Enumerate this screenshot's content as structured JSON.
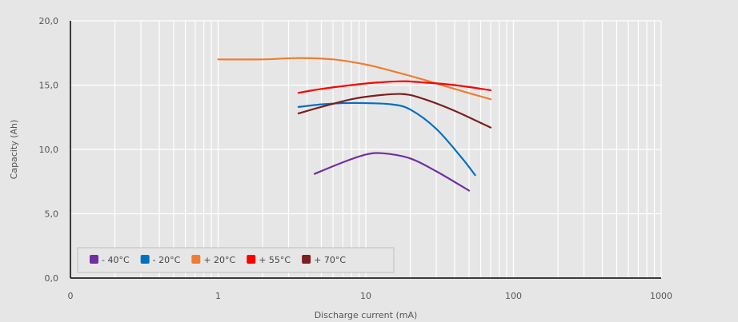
{
  "chart_data": {
    "type": "line",
    "xscale": "log",
    "xlim": [
      0.1,
      1000
    ],
    "ylim": [
      0,
      20
    ],
    "grid": true,
    "legend_position": "bottom-left",
    "xlabel": "Discharge current (mA)",
    "ylabel": "Capacity (Ah)",
    "x_ticks": [
      {
        "value": 0.1,
        "label": "0"
      },
      {
        "value": 1,
        "label": "1"
      },
      {
        "value": 10,
        "label": "10"
      },
      {
        "value": 100,
        "label": "100"
      },
      {
        "value": 1000,
        "label": "1000"
      }
    ],
    "y_ticks": [
      {
        "value": 0,
        "label": "0,0"
      },
      {
        "value": 5,
        "label": "5,0"
      },
      {
        "value": 10,
        "label": "10,0"
      },
      {
        "value": 15,
        "label": "15,0"
      },
      {
        "value": 20,
        "label": "20,0"
      }
    ],
    "series": [
      {
        "name": "- 40°C",
        "color": "#7030a0",
        "x": [
          4.5,
          7,
          10,
          13,
          20,
          30,
          50
        ],
        "y": [
          8.1,
          9.0,
          9.6,
          9.7,
          9.3,
          8.3,
          6.8
        ]
      },
      {
        "name": "- 20°C",
        "color": "#0070c0",
        "x": [
          3.5,
          5,
          7,
          10,
          15,
          20,
          30,
          45,
          55
        ],
        "y": [
          13.3,
          13.5,
          13.6,
          13.6,
          13.5,
          13.1,
          11.6,
          9.3,
          8.0
        ]
      },
      {
        "name": "+ 20°C",
        "color": "#ed7d31",
        "x": [
          1,
          2,
          3.5,
          6,
          10,
          15,
          25,
          40,
          70
        ],
        "y": [
          17.0,
          17.0,
          17.1,
          17.0,
          16.6,
          16.1,
          15.4,
          14.7,
          13.9
        ]
      },
      {
        "name": "+ 55°C",
        "color": "#ff0000",
        "x": [
          3.5,
          5,
          8,
          12,
          18,
          25,
          40,
          70
        ],
        "y": [
          14.4,
          14.7,
          15.0,
          15.2,
          15.3,
          15.2,
          15.0,
          14.6
        ]
      },
      {
        "name": "+ 70°C",
        "color": "#7b1f1f",
        "x": [
          3.5,
          5,
          8,
          12,
          18,
          25,
          40,
          70
        ],
        "y": [
          12.8,
          13.3,
          13.9,
          14.2,
          14.3,
          13.9,
          13.0,
          11.7
        ]
      }
    ]
  }
}
